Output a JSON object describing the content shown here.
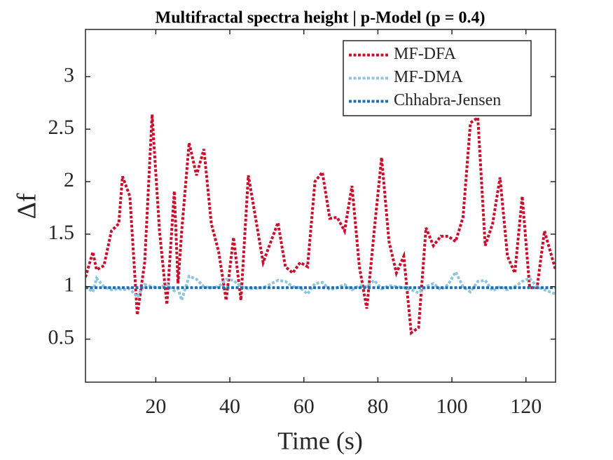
{
  "chart_data": {
    "type": "line",
    "title": "Multifractal spectra height | p-Model (p = 0.4)",
    "x_label": "Time (s)",
    "y_label": "Δf",
    "xlim": [
      1,
      128
    ],
    "ylim": [
      0.09,
      3.45
    ],
    "xticks": [
      20,
      40,
      60,
      80,
      100,
      120
    ],
    "yticks": [
      0.5,
      1,
      1.5,
      2,
      2.5,
      3
    ],
    "legend": "top-right",
    "series": [
      {
        "name": "MF-DFA",
        "color": "#c8102e",
        "x": [
          1,
          3,
          4,
          6,
          8,
          10,
          11,
          13,
          15,
          17,
          19,
          21,
          23,
          25,
          26,
          27,
          29,
          31,
          33,
          35,
          37,
          39,
          41,
          43,
          45,
          49,
          53,
          55,
          57,
          59,
          61,
          63,
          65,
          67,
          69,
          71,
          73,
          75,
          77,
          79,
          81,
          83,
          85,
          87,
          89,
          91,
          93,
          95,
          97,
          99,
          101,
          103,
          105,
          107,
          109,
          111,
          113,
          115,
          117,
          119,
          121,
          123,
          125,
          128
        ],
        "values": [
          1.09,
          1.33,
          1.16,
          1.2,
          1.53,
          1.6,
          2.05,
          1.86,
          0.73,
          1.23,
          2.64,
          1.53,
          0.83,
          1.91,
          1.03,
          1.53,
          2.37,
          2.06,
          2.31,
          1.6,
          1.33,
          0.87,
          1.47,
          0.87,
          2.06,
          1.23,
          1.61,
          1.19,
          1.13,
          1.23,
          1.19,
          2.0,
          2.09,
          1.65,
          1.66,
          1.53,
          1.96,
          1.19,
          0.79,
          1.53,
          2.23,
          1.43,
          1.13,
          1.29,
          0.56,
          0.61,
          1.56,
          1.39,
          1.48,
          1.48,
          1.43,
          1.66,
          2.56,
          2.61,
          1.39,
          1.6,
          2.04,
          1.29,
          1.13,
          1.86,
          0.99,
          0.99,
          1.53,
          1.16
        ]
      },
      {
        "name": "MF-DMA",
        "color": "#8ec6df",
        "x": [
          1,
          3,
          4,
          6,
          8,
          10,
          11,
          13,
          15,
          17,
          19,
          21,
          23,
          25,
          26,
          27,
          29,
          31,
          33,
          35,
          37,
          39,
          41,
          43,
          45,
          49,
          53,
          55,
          57,
          59,
          61,
          63,
          65,
          67,
          69,
          71,
          73,
          75,
          77,
          79,
          81,
          83,
          85,
          87,
          89,
          91,
          93,
          95,
          97,
          99,
          101,
          103,
          105,
          107,
          109,
          111,
          113,
          115,
          117,
          119,
          121,
          123,
          125,
          128
        ],
        "values": [
          1.0,
          0.95,
          1.08,
          1.0,
          0.97,
          0.98,
          0.97,
          0.98,
          0.9,
          1.02,
          1.0,
          0.99,
          1.02,
          0.96,
          0.98,
          0.87,
          1.1,
          1.07,
          1.0,
          0.99,
          1.0,
          1.07,
          1.06,
          1.0,
          0.98,
          0.99,
          1.06,
          1.05,
          1.0,
          0.99,
          0.93,
          1.03,
          1.04,
          0.97,
          0.99,
          1.02,
          0.97,
          1.01,
          1.0,
          1.06,
          0.98,
          1.01,
          1.0,
          0.99,
          0.97,
          0.94,
          1.0,
          1.03,
          0.97,
          1.02,
          1.14,
          1.0,
          0.95,
          1.05,
          1.06,
          0.96,
          1.0,
          0.97,
          1.0,
          1.05,
          1.08,
          1.0,
          0.97,
          0.93
        ]
      },
      {
        "name": "Chhabra-Jensen",
        "color": "#1c6fb0",
        "x": [
          1,
          128
        ],
        "values": [
          0.99,
          0.99
        ]
      }
    ]
  }
}
